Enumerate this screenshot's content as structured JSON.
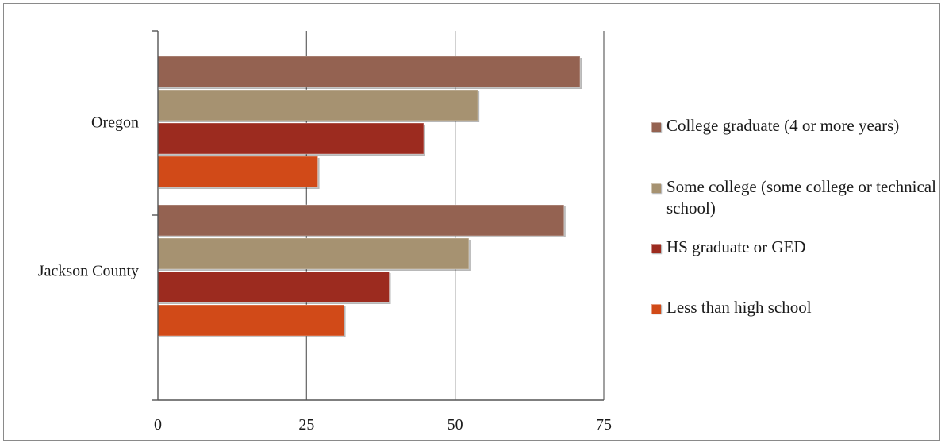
{
  "chart_data": {
    "type": "bar",
    "orientation": "horizontal",
    "title": "",
    "xlabel": "",
    "ylabel": "",
    "categories": [
      "Oregon",
      "Jackson County"
    ],
    "xlim": [
      0,
      75
    ],
    "xticks": [
      "0",
      "25",
      "50",
      "75"
    ],
    "grid": true,
    "legend_position": "right",
    "series": [
      {
        "name": "College graduate (4 or more years)",
        "color": "#946251",
        "values": [
          71,
          68.3
        ]
      },
      {
        "name": "Some college (some college or technical school)",
        "color": "#a69271",
        "values": [
          53.8,
          52.3
        ]
      },
      {
        "name": "HS graduate or GED",
        "color": "#9c2b1f",
        "values": [
          44.7,
          38.9
        ]
      },
      {
        "name": "Less than high school",
        "color": "#d14a18",
        "values": [
          26.9,
          31.3
        ]
      }
    ]
  }
}
